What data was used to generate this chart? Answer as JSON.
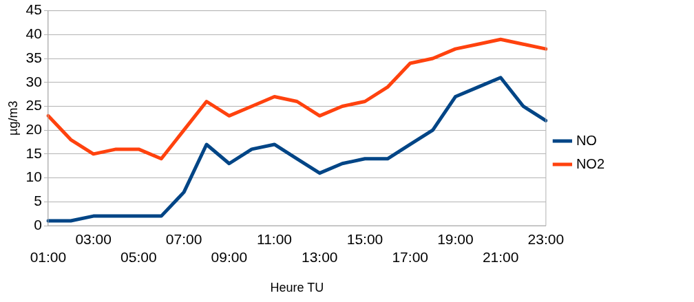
{
  "chart_data": {
    "type": "line",
    "xlabel": "Heure TU",
    "ylabel": "µg/m3",
    "categories": [
      "01:00",
      null,
      "03:00",
      null,
      "05:00",
      null,
      "07:00",
      null,
      "09:00",
      null,
      "11:00",
      null,
      "13:00",
      null,
      "15:00",
      null,
      "17:00",
      null,
      "19:00",
      null,
      "21:00",
      null,
      "23:00"
    ],
    "series": [
      {
        "name": "NO",
        "color": "#004586",
        "values": [
          1,
          1,
          2,
          2,
          2,
          2,
          7,
          17,
          13,
          16,
          17,
          14,
          11,
          13,
          14,
          14,
          17,
          20,
          27,
          29,
          31,
          25,
          22
        ]
      },
      {
        "name": "NO2",
        "color": "#ff420e",
        "values": [
          23,
          18,
          15,
          16,
          16,
          14,
          20,
          26,
          23,
          25,
          27,
          26,
          23,
          25,
          26,
          29,
          34,
          35,
          37,
          38,
          39,
          38,
          37
        ]
      }
    ],
    "ylim": [
      0,
      45
    ],
    "yticks": [
      0,
      5,
      10,
      15,
      20,
      25,
      30,
      35,
      40,
      45
    ],
    "grid": "y",
    "legend": "right",
    "marker": "none",
    "line_style": "solid"
  }
}
